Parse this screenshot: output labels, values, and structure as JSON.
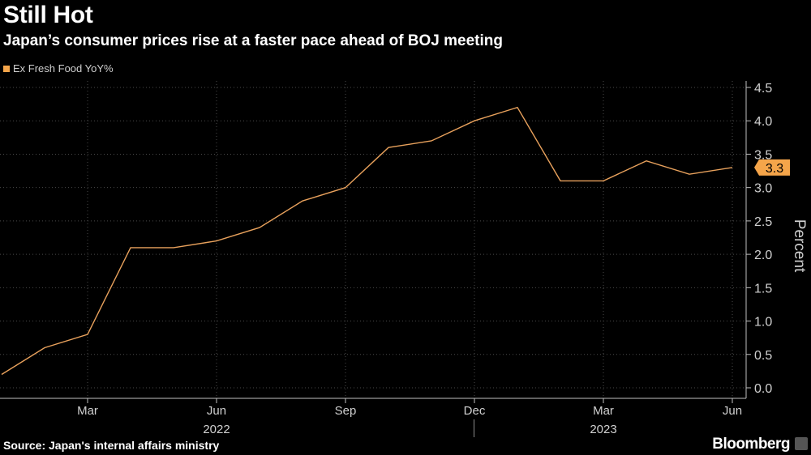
{
  "header": {
    "title": "Still Hot",
    "subtitle": "Japan’s consumer prices rise at a faster pace ahead of BOJ meeting"
  },
  "footer": {
    "source": "Source: Japan's internal affairs ministry",
    "brand": "Bloomberg"
  },
  "colors": {
    "line": "#e8a15c",
    "badge": "#f5a54a",
    "grid": "#4a4a4a",
    "background": "#000000"
  },
  "chart_data": {
    "type": "line",
    "title": "Still Hot",
    "subtitle": "Japan’s consumer prices rise at a faster pace ahead of BOJ meeting",
    "ylabel": "Percent",
    "ylim": [
      0,
      4.5
    ],
    "yticks": [
      "0.0",
      "0.5",
      "1.0",
      "1.5",
      "2.0",
      "2.5",
      "3.0",
      "3.5",
      "4.0",
      "4.5"
    ],
    "grid": true,
    "legend_placement": "top-left",
    "x_ticks": [
      {
        "label": "Mar",
        "x": "2022-03"
      },
      {
        "label": "Jun",
        "x": "2022-06"
      },
      {
        "label": "Sep",
        "x": "2022-09"
      },
      {
        "label": "Dec",
        "x": "2022-12"
      },
      {
        "label": "Mar",
        "x": "2023-03"
      },
      {
        "label": "Jun",
        "x": "2023-06"
      }
    ],
    "x_years": [
      {
        "label": "2022",
        "x": "2022-06"
      },
      {
        "label": "2023",
        "x": "2023-03"
      }
    ],
    "series": [
      {
        "name": "Ex Fresh Food YoY%",
        "x": [
          "2022-01",
          "2022-02",
          "2022-03",
          "2022-04",
          "2022-05",
          "2022-06",
          "2022-07",
          "2022-08",
          "2022-09",
          "2022-10",
          "2022-11",
          "2022-12",
          "2023-01",
          "2023-02",
          "2023-03",
          "2023-04",
          "2023-05",
          "2023-06"
        ],
        "values": [
          0.2,
          0.6,
          0.8,
          2.1,
          2.1,
          2.2,
          2.4,
          2.8,
          3.0,
          3.6,
          3.7,
          4.0,
          4.2,
          3.1,
          3.1,
          3.4,
          3.2,
          3.3
        ]
      }
    ],
    "last_value_label": "3.3"
  }
}
